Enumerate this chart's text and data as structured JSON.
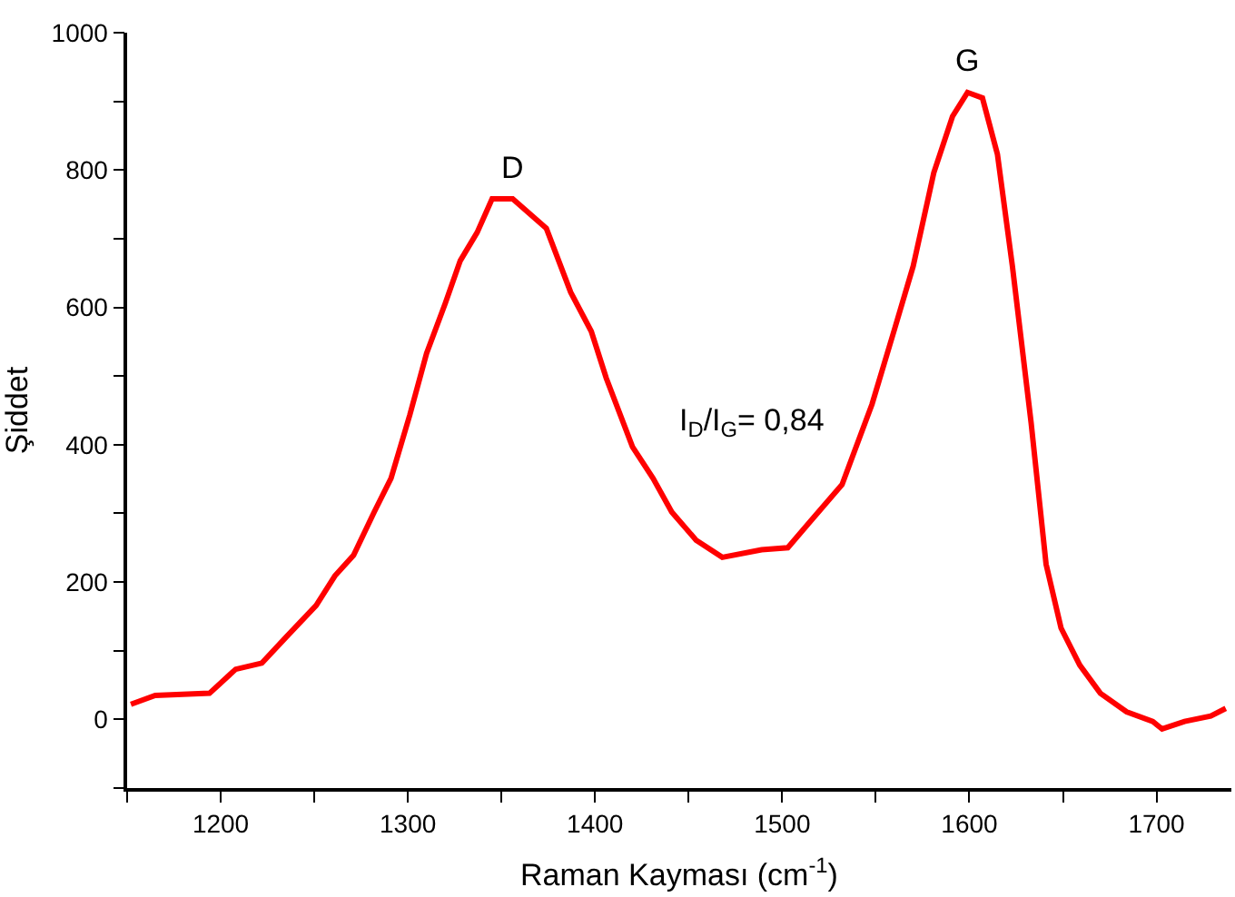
{
  "chart_data": {
    "type": "line",
    "xlabel": "Raman Kayması (cm$^{-1}$)",
    "ylabel": "Şiddet",
    "xlim": [
      1150,
      1740
    ],
    "ylim": [
      -100,
      1000
    ],
    "xticks": [
      {
        "value": 1150,
        "label": null
      },
      1200,
      {
        "value": 1250,
        "label": null
      },
      1300,
      {
        "value": 1350,
        "label": null
      },
      1400,
      {
        "value": 1450,
        "label": null
      },
      1500,
      {
        "value": 1550,
        "label": null
      },
      1600,
      {
        "value": 1650,
        "label": null
      },
      1700
    ],
    "yticks": [
      {
        "value": -100,
        "label": null
      },
      0,
      {
        "value": 100,
        "label": null
      },
      200,
      {
        "value": 300,
        "label": null
      },
      400,
      {
        "value": 500,
        "label": null
      },
      600,
      {
        "value": 700,
        "label": null
      },
      800,
      {
        "value": 900,
        "label": null
      },
      1000
    ],
    "marker": "none",
    "line_style": "solid",
    "series": [
      {
        "color": "#ff0000",
        "x": [
          1152,
          1165,
          1194,
          1208,
          1222,
          1235,
          1251,
          1261,
          1271,
          1282,
          1291,
          1301,
          1310,
          1320,
          1328,
          1337,
          1345,
          1356,
          1374,
          1387,
          1398,
          1406,
          1420,
          1431,
          1441,
          1454,
          1468,
          1489,
          1503,
          1514,
          1532,
          1548,
          1560,
          1570,
          1581,
          1591,
          1599,
          1607,
          1615,
          1623,
          1633,
          1641,
          1649,
          1659,
          1670,
          1684,
          1698,
          1703,
          1715,
          1729,
          1737
        ],
        "values": [
          22,
          35,
          38,
          73,
          82,
          120,
          166,
          209,
          239,
          302,
          351,
          443,
          533,
          606,
          668,
          709,
          758,
          758,
          715,
          622,
          565,
          497,
          397,
          351,
          302,
          261,
          236,
          247,
          250,
          285,
          342,
          459,
          568,
          660,
          796,
          878,
          913,
          905,
          823,
          660,
          432,
          226,
          133,
          79,
          38,
          11,
          -3,
          -14,
          -3,
          5,
          16
        ]
      }
    ],
    "annotations": [
      "D",
      "G",
      "I$_{D}$/I$_{G}$= 0,84"
    ]
  }
}
